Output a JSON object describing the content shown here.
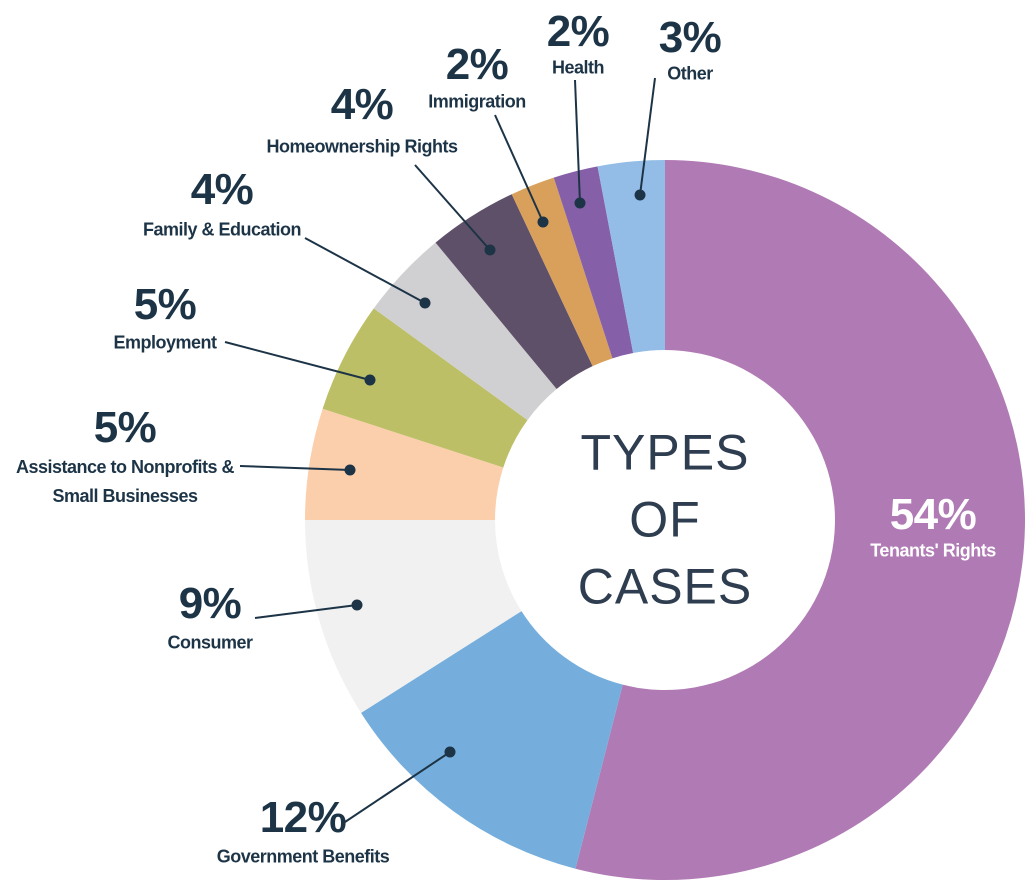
{
  "chart_data": {
    "type": "donut",
    "title": "TYPES OF CASES",
    "categories": [
      "Tenants' Rights",
      "Government Benefits",
      "Consumer",
      "Assistance to Nonprofits & Small Businesses",
      "Employment",
      "Family & Education",
      "Homeownership Rights",
      "Immigration",
      "Health",
      "Other"
    ],
    "values": [
      54,
      12,
      9,
      5,
      5,
      4,
      4,
      2,
      2,
      3
    ],
    "value_labels": [
      "54%",
      "12%",
      "9%",
      "5%",
      "5%",
      "4%",
      "4%",
      "2%",
      "2%",
      "3%"
    ],
    "colors": [
      "#b07ab4",
      "#75aedc",
      "#f0f1f0",
      "#fbcfab",
      "#bcbf66",
      "#d0d0d2",
      "#5e5068",
      "#d9a05c",
      "#8560a8",
      "#93bde6"
    ]
  }
}
